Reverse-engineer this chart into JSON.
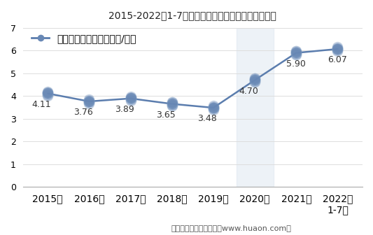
{
  "title": "2015-2022年1-7月大连商品交易所豆一期货成交均价",
  "legend_label": "豆一期货成交均价（万元/手）",
  "x_labels": [
    "2015年",
    "2016年",
    "2017年",
    "2018年",
    "2019年",
    "2020年",
    "2021年",
    "2022年\n1-7月"
  ],
  "y_values": [
    4.11,
    3.76,
    3.89,
    3.65,
    3.48,
    4.7,
    5.9,
    6.07
  ],
  "data_labels": [
    "4.11",
    "3.76",
    "3.89",
    "3.65",
    "3.48",
    "4.70",
    "5.90",
    "6.07"
  ],
  "label_offsets_x": [
    -0.15,
    -0.15,
    -0.15,
    -0.15,
    -0.15,
    -0.15,
    0.0,
    0.0
  ],
  "label_offsets_y": [
    -0.28,
    -0.28,
    -0.28,
    -0.28,
    -0.28,
    -0.28,
    -0.28,
    -0.28
  ],
  "line_color": "#5b7dae",
  "marker_color": "#6888b5",
  "marker_edge_color": "#8aaad0",
  "ylim": [
    0,
    7
  ],
  "yticks": [
    0,
    1,
    2,
    3,
    4,
    5,
    6,
    7
  ],
  "footer": "制图：华经产业研究院（www.huaon.com）",
  "background_color": "#ffffff",
  "plot_bg_color": "#ffffff",
  "highlight_x_bg": "#dce6f1",
  "title_fontsize": 13,
  "label_fontsize": 9,
  "tick_fontsize": 9,
  "legend_fontsize": 10,
  "footer_fontsize": 8
}
